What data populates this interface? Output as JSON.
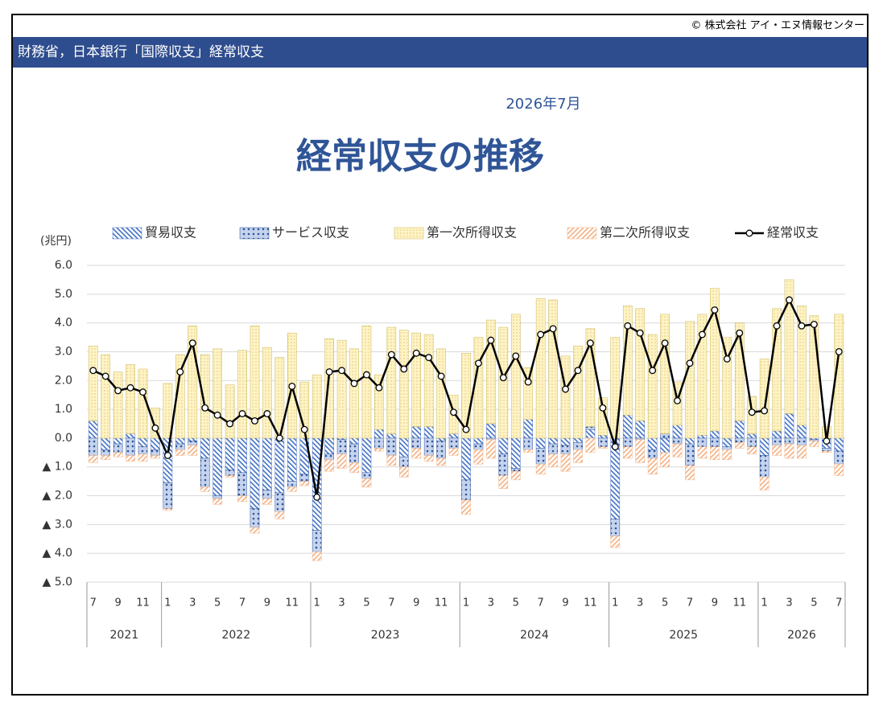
{
  "header": {
    "copyright": "© 株式会社 アイ・エヌ情報センター",
    "banner": "財務省，日本銀行「国際収支」経常収支"
  },
  "chart_data": {
    "type": "bar",
    "stacked": true,
    "subtitle": "2026年7月",
    "title": "経常収支の推移",
    "y_label": "(兆円)",
    "ylim": [
      -5,
      6
    ],
    "yticks": [
      {
        "value": 6,
        "label": "6.0"
      },
      {
        "value": 5,
        "label": "5.0"
      },
      {
        "value": 4,
        "label": "4.0"
      },
      {
        "value": 3,
        "label": "3.0"
      },
      {
        "value": 2,
        "label": "2.0"
      },
      {
        "value": 1,
        "label": "1.0"
      },
      {
        "value": 0,
        "label": "0.0"
      },
      {
        "value": -1,
        "label": "▲ 1.0"
      },
      {
        "value": -2,
        "label": "▲ 2.0"
      },
      {
        "value": -3,
        "label": "▲ 3.0"
      },
      {
        "value": -4,
        "label": "▲ 4.0"
      },
      {
        "value": -5,
        "label": "▲ 5.0"
      }
    ],
    "grid": true,
    "categories": [
      "7",
      null,
      "9",
      null,
      "11",
      null,
      "1",
      null,
      "3",
      null,
      "5",
      null,
      "7",
      null,
      "9",
      null,
      "11",
      null,
      "1",
      null,
      "3",
      null,
      "5",
      null,
      "7",
      null,
      "9",
      null,
      "11",
      null,
      "1",
      null,
      "3",
      null,
      "5",
      null,
      "7",
      null,
      "9",
      null,
      "11",
      null,
      "1",
      null,
      "3",
      null,
      "5",
      null,
      "7",
      null,
      "9",
      null,
      "11",
      null,
      "1",
      null,
      "3",
      null,
      "5",
      null,
      "7"
    ],
    "years": [
      "2021",
      "2022",
      "2023",
      "2024",
      "2025",
      "2026"
    ],
    "series": [
      {
        "name": "貿易収支",
        "type": "bar",
        "pattern": "backslash",
        "color": "#4472c4",
        "values": [
          0.6,
          -0.4,
          -0.2,
          0.15,
          -0.3,
          -0.4,
          -1.55,
          -0.2,
          -0.1,
          -0.7,
          -2.0,
          -1.1,
          -1.2,
          -2.45,
          -1.8,
          -1.9,
          -1.5,
          -1.25,
          -3.2,
          -0.55,
          -0.05,
          -0.2,
          -1.2,
          0.3,
          0.15,
          -0.65,
          0.4,
          0.4,
          -0.1,
          0.15,
          -1.45,
          -0.2,
          0.5,
          -0.55,
          -1.05,
          0.65,
          -0.35,
          -0.2,
          -0.25,
          -0.15,
          0.3,
          0.1,
          -2.8,
          0.8,
          0.6,
          -0.4,
          -0.5,
          0.45,
          -0.2,
          0.1,
          0.25,
          -0.3,
          0.6,
          0.15,
          -0.6,
          0.25,
          0.85,
          0.45,
          -0.05,
          -0.35,
          -0.45
        ]
      },
      {
        "name": "サービス収支",
        "type": "bar",
        "pattern": "dots",
        "color": "#2f5597",
        "values": [
          -0.6,
          -0.2,
          -0.3,
          -0.6,
          -0.25,
          -0.2,
          -0.9,
          -0.2,
          -0.15,
          -1.0,
          -0.1,
          -0.2,
          -0.8,
          -0.65,
          -0.3,
          -0.65,
          -0.2,
          -0.25,
          -0.75,
          -0.2,
          -0.5,
          -0.65,
          -0.2,
          -0.35,
          -0.6,
          -0.35,
          -0.35,
          -0.6,
          -0.6,
          -0.35,
          -0.7,
          -0.2,
          -0.05,
          -0.75,
          -0.1,
          -0.4,
          -0.55,
          -0.35,
          -0.3,
          -0.25,
          0.1,
          -0.3,
          -0.6,
          -0.3,
          -0.05,
          -0.3,
          0.15,
          -0.2,
          -0.75,
          -0.3,
          -0.3,
          -0.1,
          -0.15,
          -0.3,
          -0.75,
          -0.25,
          -0.2,
          -0.25,
          -0.05,
          -0.1,
          -0.45
        ]
      },
      {
        "name": "第一次所得収支",
        "type": "bar",
        "pattern": "fine-dots",
        "color": "#c9b458",
        "values": [
          2.6,
          2.9,
          2.3,
          2.4,
          2.4,
          1.05,
          1.9,
          2.9,
          3.9,
          2.9,
          3.1,
          1.85,
          3.05,
          3.9,
          3.15,
          2.8,
          3.65,
          1.95,
          2.2,
          3.45,
          3.4,
          3.1,
          3.9,
          1.9,
          3.7,
          3.75,
          3.25,
          3.2,
          3.1,
          1.35,
          2.95,
          3.5,
          3.6,
          3.85,
          4.3,
          1.8,
          4.85,
          4.8,
          2.85,
          3.2,
          3.4,
          1.3,
          3.5,
          3.8,
          3.9,
          3.6,
          4.15,
          1.5,
          4.05,
          4.2,
          4.95,
          3.5,
          3.4,
          1.3,
          2.75,
          4.25,
          4.65,
          4.15,
          4.25,
          0.4,
          4.3
        ]
      },
      {
        "name": "第二次所得収支",
        "type": "bar",
        "pattern": "slash",
        "color": "#f4b183",
        "values": [
          -0.25,
          -0.15,
          -0.15,
          -0.2,
          -0.25,
          -0.1,
          -0.05,
          -0.2,
          -0.35,
          -0.15,
          -0.2,
          -0.05,
          -0.2,
          -0.2,
          -0.2,
          -0.25,
          -0.15,
          -0.15,
          -0.3,
          -0.4,
          -0.5,
          -0.35,
          -0.3,
          -0.1,
          -0.35,
          -0.35,
          -0.35,
          -0.2,
          -0.25,
          -0.25,
          -0.5,
          -0.5,
          -0.65,
          -0.45,
          -0.3,
          -0.1,
          -0.35,
          -0.45,
          -0.6,
          -0.45,
          -0.5,
          -0.05,
          -0.4,
          -0.4,
          -0.8,
          -0.55,
          -0.5,
          -0.45,
          -0.5,
          -0.4,
          -0.45,
          -0.35,
          -0.2,
          -0.25,
          -0.45,
          -0.35,
          -0.5,
          -0.45,
          -0.2,
          -0.05,
          -0.4
        ]
      },
      {
        "name": "経常収支",
        "type": "line",
        "color": "#000000",
        "values": [
          2.35,
          2.15,
          1.65,
          1.75,
          1.6,
          0.35,
          -0.6,
          2.3,
          3.3,
          1.05,
          0.8,
          0.5,
          0.85,
          0.6,
          0.85,
          0,
          1.8,
          0.3,
          -2.05,
          2.3,
          2.35,
          1.9,
          2.2,
          1.75,
          2.9,
          2.4,
          2.95,
          2.8,
          2.15,
          0.9,
          0.3,
          2.6,
          3.4,
          2.1,
          2.85,
          1.95,
          3.6,
          3.8,
          1.7,
          2.35,
          3.3,
          1.05,
          -0.3,
          3.9,
          3.65,
          2.35,
          3.3,
          1.3,
          2.6,
          3.6,
          4.45,
          2.75,
          3.65,
          0.9,
          0.95,
          3.9,
          4.8,
          3.9,
          3.95,
          -0.1,
          3.0
        ]
      }
    ]
  }
}
